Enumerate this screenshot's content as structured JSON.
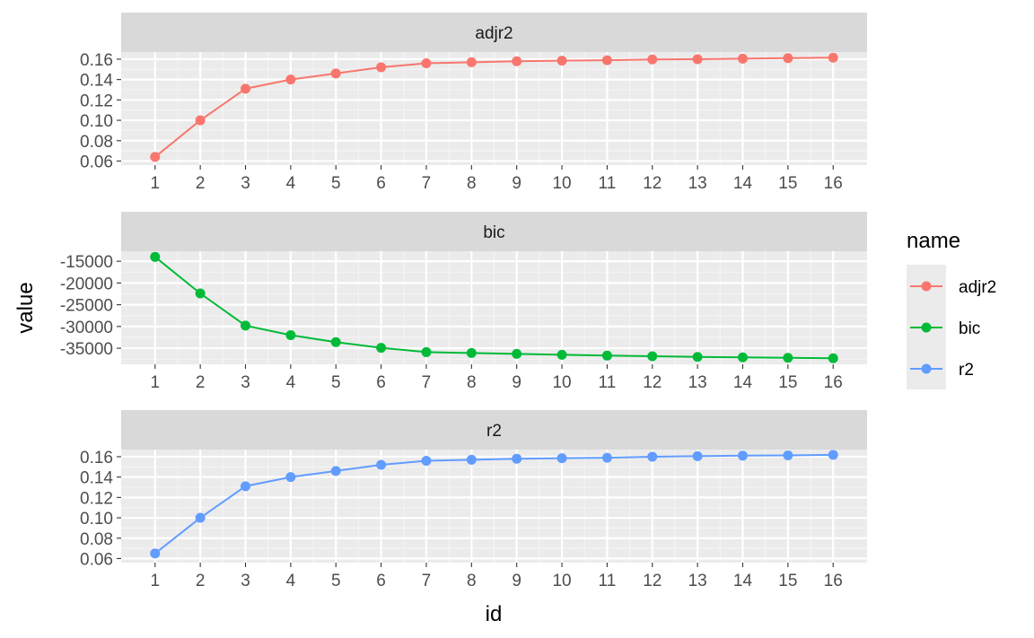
{
  "chart_data": {
    "type": "line",
    "facet_layout": "stacked",
    "x_label": "id",
    "y_label": "value",
    "x": [
      1,
      2,
      3,
      4,
      5,
      6,
      7,
      8,
      9,
      10,
      11,
      12,
      13,
      14,
      15,
      16
    ],
    "x_tick_labels": [
      "1",
      "2",
      "3",
      "4",
      "5",
      "6",
      "7",
      "8",
      "9",
      "10",
      "11",
      "12",
      "13",
      "14",
      "15",
      "16"
    ],
    "legend": {
      "title": "name",
      "placement": "right",
      "entries": [
        {
          "label": "adjr2",
          "color": "#F8766D"
        },
        {
          "label": "bic",
          "color": "#00BA38"
        },
        {
          "label": "r2",
          "color": "#619CFF"
        }
      ]
    },
    "facets": [
      {
        "name": "adjr2",
        "color": "#F8766D",
        "ylim": [
          0.056,
          0.167
        ],
        "y_ticks": [
          0.06,
          0.08,
          0.1,
          0.12,
          0.14,
          0.16
        ],
        "y_tick_labels": [
          "0.06",
          "0.08",
          "0.10",
          "0.12",
          "0.14",
          "0.16"
        ],
        "values": [
          0.064,
          0.1,
          0.131,
          0.14,
          0.146,
          0.152,
          0.156,
          0.157,
          0.158,
          0.1585,
          0.159,
          0.1597,
          0.16,
          0.1605,
          0.161,
          0.1615
        ]
      },
      {
        "name": "bic",
        "color": "#00BA38",
        "ylim": [
          -38700,
          -12700
        ],
        "y_ticks": [
          -35000,
          -30000,
          -25000,
          -20000,
          -15000
        ],
        "y_tick_labels": [
          "-35000",
          "-30000",
          "-25000",
          "-20000",
          "-15000"
        ],
        "values": [
          -14000,
          -22400,
          -29800,
          -32000,
          -33600,
          -34900,
          -35900,
          -36100,
          -36300,
          -36500,
          -36700,
          -36850,
          -37000,
          -37100,
          -37200,
          -37300
        ]
      },
      {
        "name": "r2",
        "color": "#619CFF",
        "ylim": [
          0.056,
          0.167
        ],
        "y_ticks": [
          0.06,
          0.08,
          0.1,
          0.12,
          0.14,
          0.16
        ],
        "y_tick_labels": [
          "0.06",
          "0.08",
          "0.10",
          "0.12",
          "0.14",
          "0.16"
        ],
        "values": [
          0.065,
          0.1,
          0.131,
          0.14,
          0.146,
          0.152,
          0.156,
          0.157,
          0.158,
          0.1585,
          0.159,
          0.16,
          0.1605,
          0.161,
          0.1613,
          0.1618
        ]
      }
    ]
  }
}
